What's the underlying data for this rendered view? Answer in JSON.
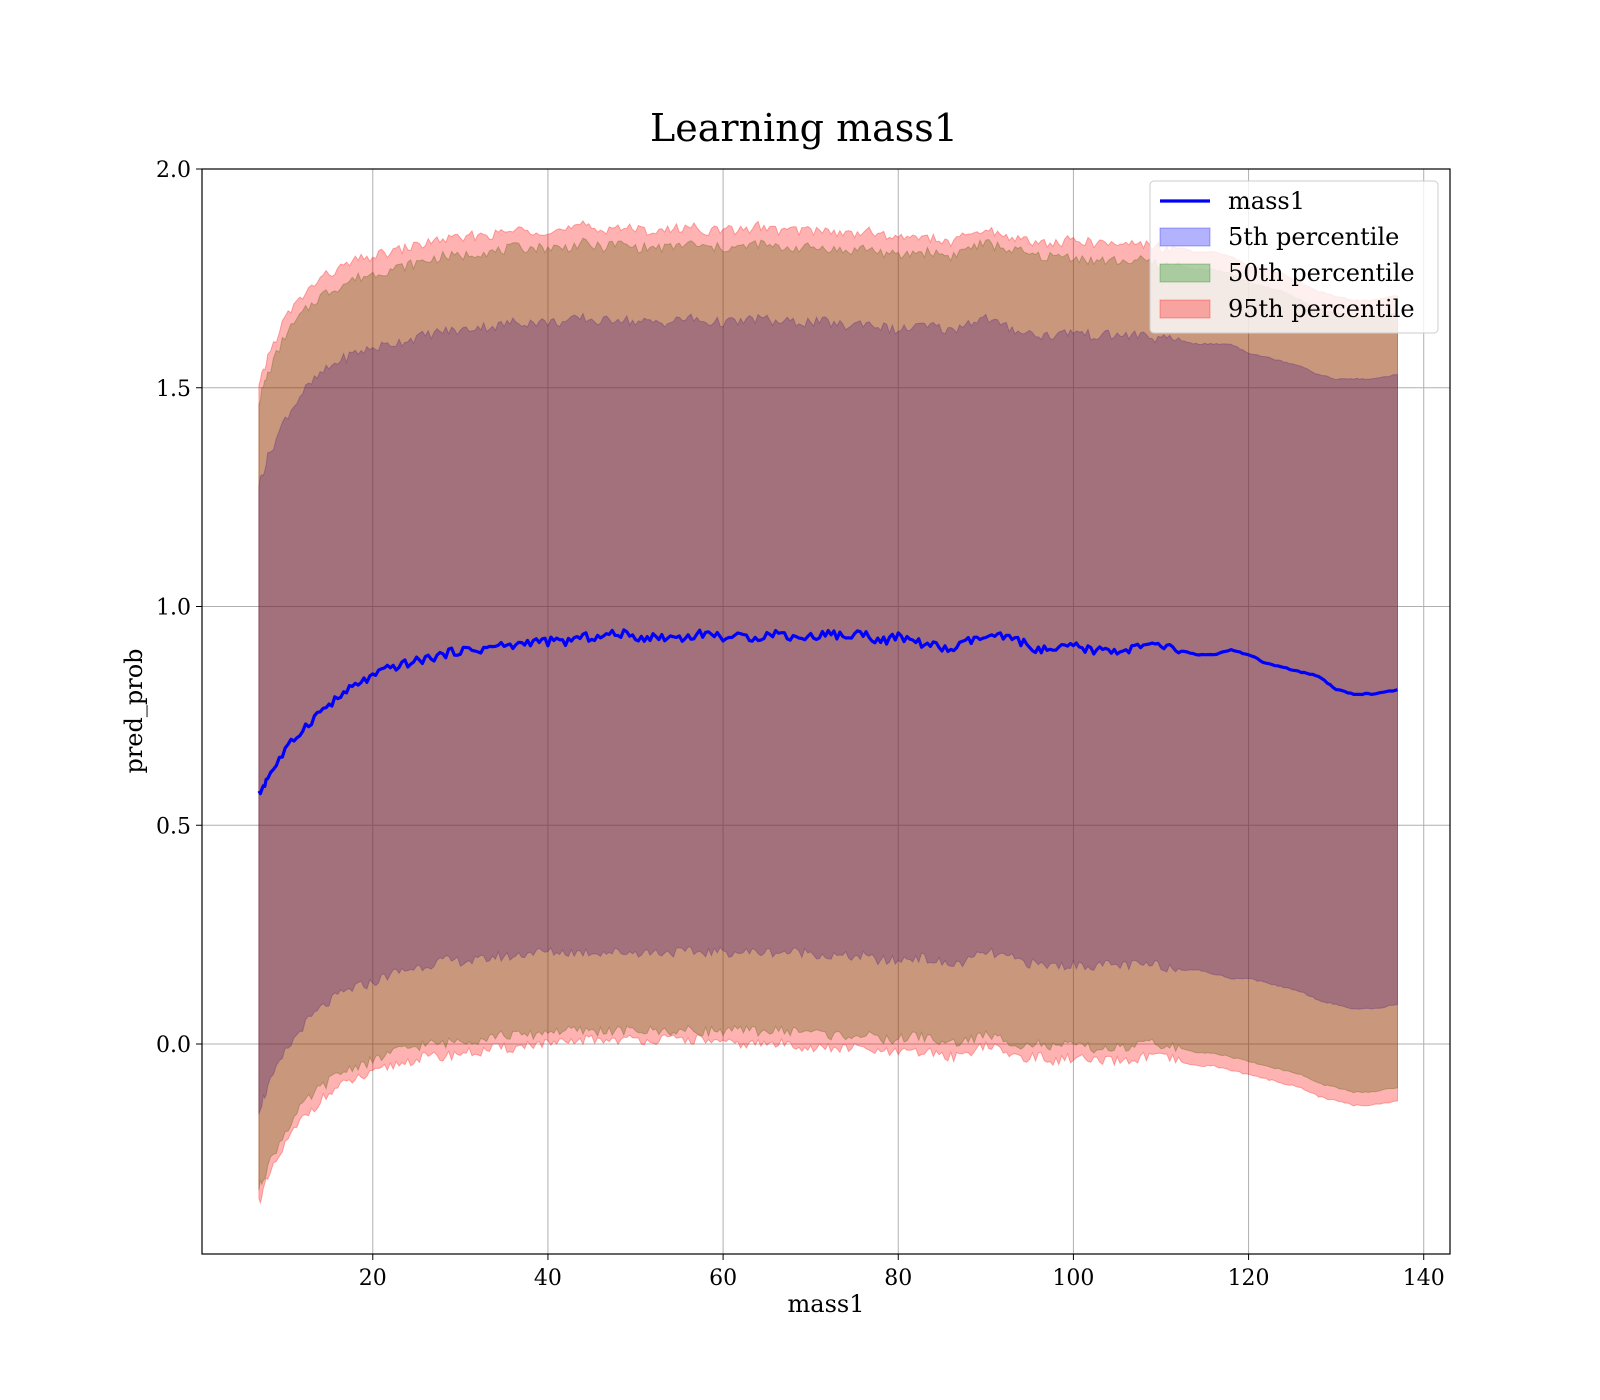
{
  "chart_data": {
    "type": "line",
    "title": "Learning mass1",
    "xlabel": "mass1",
    "ylabel": "pred_prob",
    "xlim": [
      0.5,
      143
    ],
    "ylim": [
      -0.48,
      2.0
    ],
    "xticks": [
      "20",
      "40",
      "60",
      "80",
      "100",
      "120",
      "140"
    ],
    "yticks": [
      "0.0",
      "0.5",
      "1.0",
      "1.5",
      "2.0"
    ],
    "grid": true,
    "legend_position": "top-right",
    "colors": {
      "line": "#0000ff",
      "band_5th": "#0000ff",
      "band_50th": "#008000",
      "band_95th": "#ff0000"
    },
    "legend": [
      {
        "label": "mass1",
        "kind": "line"
      },
      {
        "label": "5th percentile",
        "kind": "patch"
      },
      {
        "label": "50th percentile",
        "kind": "patch"
      },
      {
        "label": "95th percentile",
        "kind": "patch"
      }
    ],
    "x": [
      7,
      8,
      10,
      12,
      14,
      16,
      18,
      20,
      22,
      24,
      26,
      28,
      30,
      32,
      34,
      36,
      38,
      40,
      42,
      44,
      46,
      48,
      50,
      52,
      54,
      56,
      58,
      60,
      62,
      64,
      66,
      68,
      70,
      72,
      74,
      76,
      78,
      80,
      82,
      84,
      86,
      88,
      90,
      92,
      94,
      96,
      98,
      100,
      102,
      104,
      106,
      108,
      110,
      112,
      114,
      116,
      118,
      120,
      122,
      124,
      126,
      128,
      130,
      132,
      134,
      137
    ],
    "series": [
      {
        "name": "mass1",
        "role": "line",
        "values": [
          0.57,
          0.61,
          0.67,
          0.72,
          0.76,
          0.79,
          0.82,
          0.84,
          0.86,
          0.87,
          0.88,
          0.89,
          0.9,
          0.9,
          0.91,
          0.91,
          0.92,
          0.92,
          0.92,
          0.93,
          0.93,
          0.94,
          0.93,
          0.93,
          0.93,
          0.93,
          0.94,
          0.93,
          0.93,
          0.93,
          0.94,
          0.93,
          0.93,
          0.94,
          0.93,
          0.94,
          0.92,
          0.93,
          0.92,
          0.91,
          0.9,
          0.92,
          0.93,
          0.93,
          0.92,
          0.9,
          0.9,
          0.91,
          0.9,
          0.9,
          0.9,
          0.91,
          0.91,
          0.9,
          0.89,
          0.89,
          0.9,
          0.89,
          0.87,
          0.86,
          0.85,
          0.84,
          0.81,
          0.8,
          0.8,
          0.81
        ]
      },
      {
        "name": "5th percentile",
        "role": "band",
        "upper": [
          1.28,
          1.34,
          1.43,
          1.49,
          1.53,
          1.56,
          1.58,
          1.59,
          1.6,
          1.61,
          1.62,
          1.63,
          1.63,
          1.64,
          1.64,
          1.65,
          1.65,
          1.65,
          1.65,
          1.66,
          1.65,
          1.66,
          1.65,
          1.65,
          1.65,
          1.66,
          1.65,
          1.65,
          1.65,
          1.66,
          1.65,
          1.65,
          1.65,
          1.65,
          1.64,
          1.65,
          1.64,
          1.63,
          1.64,
          1.64,
          1.63,
          1.65,
          1.66,
          1.64,
          1.63,
          1.62,
          1.62,
          1.63,
          1.62,
          1.62,
          1.62,
          1.62,
          1.61,
          1.61,
          1.6,
          1.6,
          1.6,
          1.58,
          1.57,
          1.56,
          1.55,
          1.53,
          1.52,
          1.52,
          1.52,
          1.53
        ],
        "lower": [
          -0.15,
          -0.1,
          -0.02,
          0.04,
          0.08,
          0.11,
          0.13,
          0.14,
          0.16,
          0.17,
          0.18,
          0.19,
          0.19,
          0.19,
          0.2,
          0.2,
          0.21,
          0.21,
          0.21,
          0.21,
          0.21,
          0.21,
          0.21,
          0.21,
          0.21,
          0.21,
          0.21,
          0.21,
          0.21,
          0.21,
          0.21,
          0.21,
          0.21,
          0.2,
          0.2,
          0.2,
          0.19,
          0.19,
          0.2,
          0.19,
          0.18,
          0.19,
          0.21,
          0.2,
          0.19,
          0.18,
          0.18,
          0.18,
          0.18,
          0.18,
          0.18,
          0.18,
          0.18,
          0.17,
          0.17,
          0.16,
          0.15,
          0.15,
          0.14,
          0.13,
          0.12,
          0.1,
          0.09,
          0.08,
          0.08,
          0.09
        ]
      },
      {
        "name": "50th percentile",
        "role": "band",
        "upper": [
          1.47,
          1.53,
          1.62,
          1.67,
          1.71,
          1.73,
          1.75,
          1.76,
          1.77,
          1.78,
          1.79,
          1.8,
          1.8,
          1.81,
          1.81,
          1.82,
          1.82,
          1.82,
          1.82,
          1.83,
          1.82,
          1.83,
          1.82,
          1.82,
          1.82,
          1.83,
          1.82,
          1.82,
          1.82,
          1.83,
          1.82,
          1.82,
          1.82,
          1.82,
          1.81,
          1.82,
          1.81,
          1.8,
          1.81,
          1.81,
          1.8,
          1.82,
          1.83,
          1.82,
          1.81,
          1.8,
          1.8,
          1.8,
          1.79,
          1.79,
          1.79,
          1.79,
          1.78,
          1.78,
          1.77,
          1.77,
          1.76,
          1.74,
          1.73,
          1.72,
          1.7,
          1.68,
          1.67,
          1.66,
          1.66,
          1.67
        ],
        "lower": [
          -0.33,
          -0.28,
          -0.2,
          -0.14,
          -0.1,
          -0.07,
          -0.05,
          -0.04,
          -0.02,
          -0.01,
          0.0,
          0.0,
          0.01,
          0.01,
          0.02,
          0.02,
          0.02,
          0.03,
          0.03,
          0.03,
          0.03,
          0.03,
          0.03,
          0.03,
          0.03,
          0.03,
          0.03,
          0.03,
          0.03,
          0.03,
          0.03,
          0.03,
          0.03,
          0.02,
          0.02,
          0.02,
          0.01,
          0.01,
          0.02,
          0.01,
          0.0,
          0.01,
          0.02,
          0.01,
          0.0,
          0.0,
          -0.01,
          0.0,
          -0.01,
          -0.01,
          -0.01,
          0.0,
          0.0,
          -0.01,
          -0.02,
          -0.02,
          -0.03,
          -0.04,
          -0.05,
          -0.06,
          -0.07,
          -0.09,
          -0.1,
          -0.11,
          -0.11,
          -0.1
        ]
      },
      {
        "name": "95th percentile",
        "role": "band",
        "upper": [
          1.5,
          1.57,
          1.66,
          1.71,
          1.75,
          1.77,
          1.79,
          1.8,
          1.81,
          1.82,
          1.83,
          1.84,
          1.84,
          1.85,
          1.85,
          1.86,
          1.86,
          1.86,
          1.86,
          1.87,
          1.86,
          1.87,
          1.86,
          1.86,
          1.86,
          1.87,
          1.86,
          1.86,
          1.86,
          1.87,
          1.86,
          1.86,
          1.86,
          1.86,
          1.85,
          1.86,
          1.85,
          1.84,
          1.85,
          1.84,
          1.83,
          1.85,
          1.86,
          1.85,
          1.84,
          1.83,
          1.83,
          1.84,
          1.83,
          1.83,
          1.83,
          1.83,
          1.82,
          1.82,
          1.81,
          1.81,
          1.8,
          1.78,
          1.77,
          1.76,
          1.74,
          1.72,
          1.71,
          1.7,
          1.7,
          1.71
        ],
        "lower": [
          -0.36,
          -0.31,
          -0.23,
          -0.17,
          -0.13,
          -0.1,
          -0.08,
          -0.07,
          -0.05,
          -0.04,
          -0.03,
          -0.03,
          -0.02,
          -0.02,
          -0.01,
          -0.01,
          0.0,
          0.0,
          0.0,
          0.01,
          0.01,
          0.01,
          0.01,
          0.01,
          0.01,
          0.01,
          0.01,
          0.0,
          0.0,
          0.0,
          0.0,
          0.0,
          -0.01,
          -0.01,
          -0.01,
          -0.01,
          -0.02,
          -0.02,
          -0.02,
          -0.02,
          -0.03,
          -0.02,
          0.0,
          -0.02,
          -0.03,
          -0.03,
          -0.04,
          -0.03,
          -0.04,
          -0.04,
          -0.04,
          -0.03,
          -0.03,
          -0.04,
          -0.05,
          -0.05,
          -0.06,
          -0.07,
          -0.08,
          -0.09,
          -0.1,
          -0.12,
          -0.13,
          -0.14,
          -0.14,
          -0.13
        ]
      }
    ]
  }
}
